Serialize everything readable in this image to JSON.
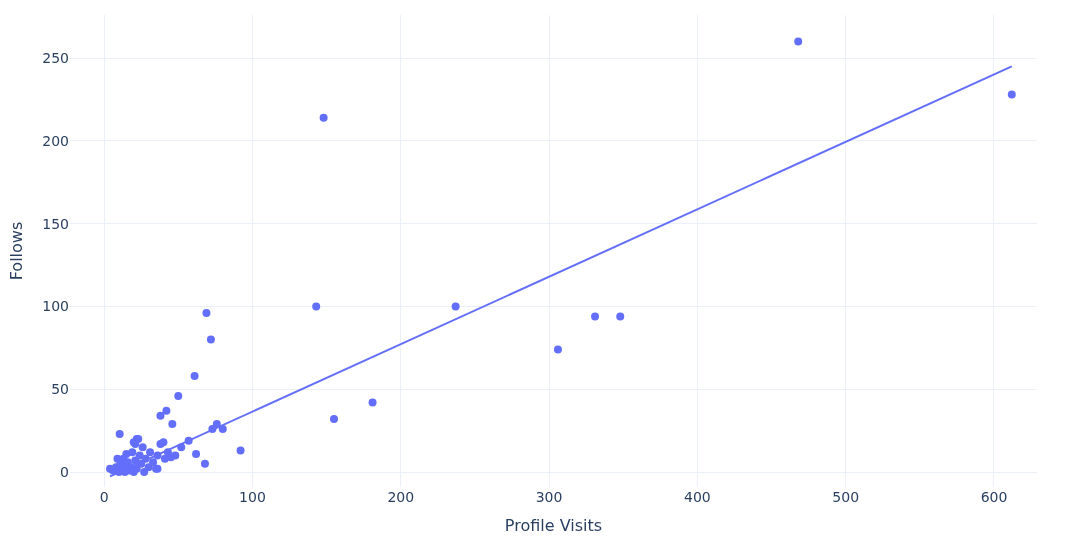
{
  "chart_data": {
    "type": "scatter",
    "xlabel": "Profile Visits",
    "ylabel": "Follows",
    "xlim": [
      -23,
      629
    ],
    "xticks": [
      0,
      100,
      200,
      300,
      400,
      500,
      600
    ],
    "ylim": [
      -9,
      276
    ],
    "yticks": [
      0,
      50,
      100,
      150,
      200,
      250
    ],
    "grid": true,
    "series": [
      {
        "marker": "circle",
        "color": "#636efa",
        "x": [
          468,
          612,
          148,
          143,
          237,
          306,
          331,
          348,
          181,
          155,
          69,
          72,
          61,
          50,
          42,
          38,
          46,
          76,
          73,
          80,
          10.5,
          22,
          21,
          38,
          57,
          52,
          92,
          62,
          48,
          68,
          15,
          36,
          4,
          6,
          8,
          9,
          10,
          11,
          12,
          13,
          14,
          15,
          16,
          17,
          18,
          19,
          20,
          20,
          21,
          22,
          23,
          24,
          25,
          26,
          27,
          28,
          30,
          31,
          33,
          35,
          36,
          40,
          41,
          43,
          45
        ],
        "values": [
          260,
          228,
          214,
          100,
          100,
          74,
          94,
          94,
          42,
          32,
          96,
          80,
          58,
          46,
          37,
          34,
          29,
          29,
          26,
          26,
          23,
          20,
          17,
          17,
          19,
          15,
          13,
          11,
          10,
          5,
          11,
          2,
          2,
          1,
          3,
          8,
          0,
          5,
          2,
          8,
          0,
          4,
          6,
          1,
          3,
          12,
          0,
          18,
          7,
          2,
          20,
          10,
          5,
          15,
          0,
          8,
          3,
          12,
          6,
          2,
          10,
          18,
          8,
          12,
          9
        ]
      },
      {
        "type": "line",
        "color": "#636efa",
        "x": [
          4,
          612
        ],
        "values": [
          -2.6,
          245
        ],
        "line_style": "solid",
        "marker": "none"
      }
    ]
  }
}
